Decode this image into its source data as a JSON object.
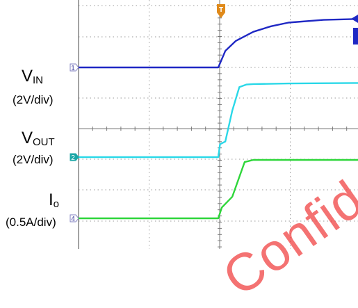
{
  "chart_data": {
    "type": "line",
    "title": "",
    "xlabel": "",
    "ylabel": "",
    "grid": true,
    "divisions": {
      "x": 10,
      "y": 8
    },
    "trigger_marker": "T",
    "series": [
      {
        "name": "VIN",
        "label_main": "V",
        "label_sub": "IN",
        "scale": "(2V/div)",
        "channel": "1",
        "color": "#1f28c4",
        "x": [
          0,
          1.85,
          2.0,
          2.2,
          2.5,
          3.0,
          3.5,
          4.0,
          5.0,
          6.0,
          7.0,
          8.0
        ],
        "y": [
          1.0,
          1.0,
          1.0,
          1.9,
          2.45,
          2.95,
          3.25,
          3.45,
          3.6,
          3.65,
          3.66,
          3.66
        ]
      },
      {
        "name": "VOUT",
        "label_main": "V",
        "label_sub": "OUT",
        "scale": "(2V/div)",
        "channel": "2",
        "color": "#2ad8e8",
        "x": [
          0,
          1.85,
          2.0,
          2.05,
          2.2,
          2.4,
          2.6,
          2.8,
          3.0,
          4.0,
          6.0,
          8.0
        ],
        "y": [
          1.0,
          1.0,
          1.0,
          1.5,
          1.6,
          2.8,
          3.7,
          3.8,
          3.82,
          3.84,
          3.86,
          3.87
        ]
      },
      {
        "name": "Io",
        "label_main": "I",
        "label_sub": "o",
        "scale": "(0.5A/div)",
        "channel": "4",
        "color": "#2ed63a",
        "x": [
          0,
          1.85,
          2.0,
          2.1,
          2.4,
          2.75,
          3.0,
          4.0,
          6.0,
          8.0
        ],
        "y": [
          1.0,
          1.0,
          1.0,
          1.5,
          2.0,
          3.6,
          3.7,
          3.7,
          3.7,
          3.7
        ]
      }
    ]
  },
  "watermark": "Confidential",
  "colors": {
    "trigger": "#e08a1a",
    "grid": "#9a9a9a"
  }
}
